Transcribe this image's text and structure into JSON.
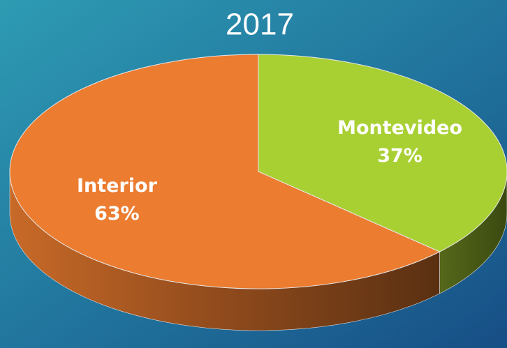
{
  "chart_data": {
    "type": "pie",
    "title": "2017",
    "categories": [
      "Montevideo",
      "Interior"
    ],
    "values": [
      37,
      63
    ],
    "value_labels": [
      "37%",
      "63%"
    ],
    "colors": [
      "#a8d033",
      "#ec7c30"
    ]
  }
}
